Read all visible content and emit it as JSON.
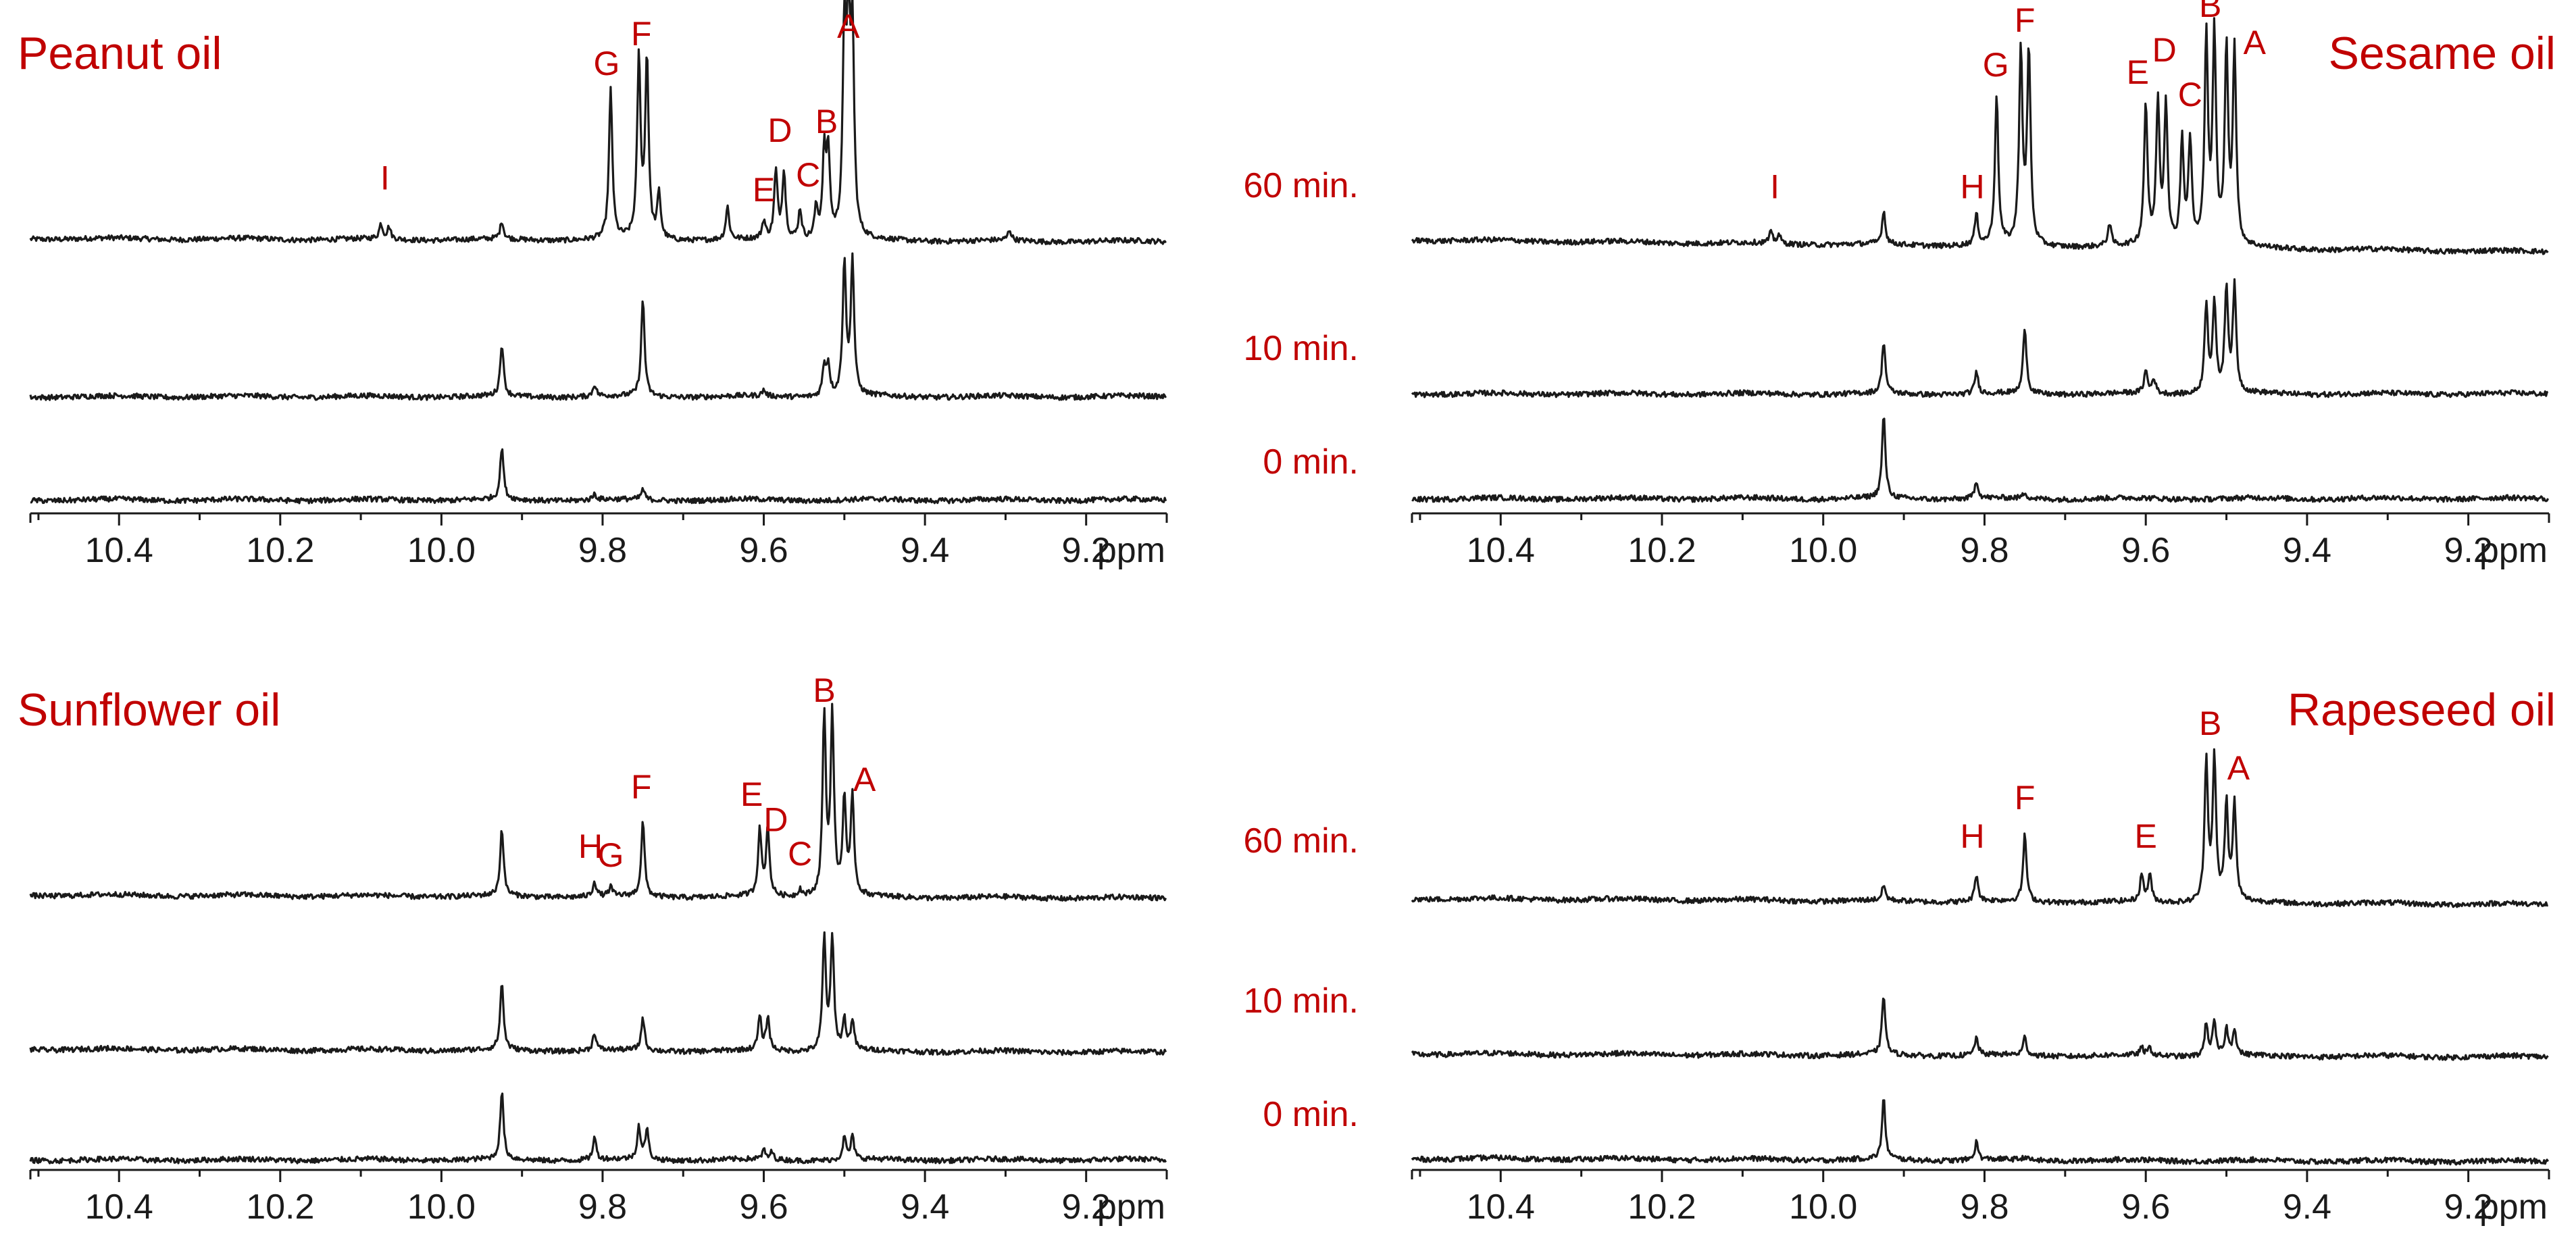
{
  "chart_data": [
    {
      "type": "line",
      "title": "Peanut oil",
      "xlabel": "ppm",
      "xlim": [
        10.51,
        9.1
      ],
      "x_ticks": [
        "10.4",
        "10.2",
        "10.0",
        "9.8",
        "9.6",
        "9.4",
        "9.2"
      ],
      "x_tick_values": [
        10.4,
        10.2,
        10.0,
        9.8,
        9.6,
        9.4,
        9.2
      ],
      "series": [
        {
          "name": "60 min.",
          "baseline_slope": 0.02,
          "peaks": [
            {
              "ppm": 10.075,
              "height": 0.1
            },
            {
              "ppm": 10.065,
              "height": 0.08
            },
            {
              "ppm": 9.925,
              "height": 0.12
            },
            {
              "ppm": 9.79,
              "height": 1.0
            },
            {
              "ppm": 9.755,
              "height": 1.2
            },
            {
              "ppm": 9.745,
              "height": 1.2
            },
            {
              "ppm": 9.73,
              "height": 0.3
            },
            {
              "ppm": 9.645,
              "height": 0.22
            },
            {
              "ppm": 9.6,
              "height": 0.12
            },
            {
              "ppm": 9.585,
              "height": 0.45
            },
            {
              "ppm": 9.575,
              "height": 0.45
            },
            {
              "ppm": 9.555,
              "height": 0.2
            },
            {
              "ppm": 9.535,
              "height": 0.2
            },
            {
              "ppm": 9.525,
              "height": 0.55
            },
            {
              "ppm": 9.52,
              "height": 0.55
            },
            {
              "ppm": 9.5,
              "height": 1.3
            },
            {
              "ppm": 9.495,
              "height": 1.3
            },
            {
              "ppm": 9.49,
              "height": 1.3
            },
            {
              "ppm": 9.295,
              "height": 0.07
            }
          ],
          "labels": [
            {
              "text": "I",
              "ppm": 10.07,
              "height": 0.33
            },
            {
              "text": "G",
              "ppm": 9.795,
              "height": 1.1
            },
            {
              "text": "F",
              "ppm": 9.752,
              "height": 1.3
            },
            {
              "text": "E",
              "ppm": 9.6,
              "height": 0.25
            },
            {
              "text": "D",
              "ppm": 9.58,
              "height": 0.65
            },
            {
              "text": "C",
              "ppm": 9.545,
              "height": 0.35
            },
            {
              "text": "B",
              "ppm": 9.522,
              "height": 0.71
            },
            {
              "text": "A",
              "ppm": 9.495,
              "height": 1.35
            }
          ]
        },
        {
          "name": "10 min.",
          "baseline_slope": 0.0,
          "peaks": [
            {
              "ppm": 9.925,
              "height": 0.35
            },
            {
              "ppm": 9.81,
              "height": 0.08
            },
            {
              "ppm": 9.75,
              "height": 0.65
            },
            {
              "ppm": 9.6,
              "height": 0.04
            },
            {
              "ppm": 9.525,
              "height": 0.2
            },
            {
              "ppm": 9.52,
              "height": 0.2
            },
            {
              "ppm": 9.5,
              "height": 0.9
            },
            {
              "ppm": 9.49,
              "height": 0.9
            }
          ],
          "labels": []
        },
        {
          "name": "0 min.",
          "baseline_slope": 0.0,
          "peaks": [
            {
              "ppm": 9.925,
              "height": 0.35
            },
            {
              "ppm": 9.81,
              "height": 0.04
            },
            {
              "ppm": 9.75,
              "height": 0.07
            }
          ],
          "labels": []
        }
      ]
    },
    {
      "type": "line",
      "title": "Sesame oil",
      "xlabel": "ppm",
      "xlim": [
        10.51,
        9.1
      ],
      "x_ticks": [
        "10.4",
        "10.2",
        "10.0",
        "9.8",
        "9.6",
        "9.4",
        "9.2"
      ],
      "x_tick_values": [
        10.4,
        10.2,
        10.0,
        9.8,
        9.6,
        9.4,
        9.2
      ],
      "series": [
        {
          "name": "60 min.",
          "baseline_slope": 0.08,
          "peaks": [
            {
              "ppm": 10.065,
              "height": 0.07
            },
            {
              "ppm": 10.055,
              "height": 0.06
            },
            {
              "ppm": 9.925,
              "height": 0.22
            },
            {
              "ppm": 9.81,
              "height": 0.2
            },
            {
              "ppm": 9.785,
              "height": 1.0
            },
            {
              "ppm": 9.755,
              "height": 1.3
            },
            {
              "ppm": 9.745,
              "height": 1.3
            },
            {
              "ppm": 9.645,
              "height": 0.15
            },
            {
              "ppm": 9.6,
              "height": 0.95
            },
            {
              "ppm": 9.585,
              "height": 0.95
            },
            {
              "ppm": 9.575,
              "height": 0.95
            },
            {
              "ppm": 9.555,
              "height": 0.7
            },
            {
              "ppm": 9.545,
              "height": 0.7
            },
            {
              "ppm": 9.525,
              "height": 1.4
            },
            {
              "ppm": 9.515,
              "height": 1.4
            },
            {
              "ppm": 9.5,
              "height": 1.3
            },
            {
              "ppm": 9.49,
              "height": 1.3
            }
          ],
          "labels": [
            {
              "text": "I",
              "ppm": 10.06,
              "height": 0.28
            },
            {
              "text": "H",
              "ppm": 9.815,
              "height": 0.28
            },
            {
              "text": "G",
              "ppm": 9.786,
              "height": 1.1
            },
            {
              "text": "F",
              "ppm": 9.75,
              "height": 1.4
            },
            {
              "text": "E",
              "ppm": 9.61,
              "height": 1.05
            },
            {
              "text": "D",
              "ppm": 9.577,
              "height": 1.2
            },
            {
              "text": "C",
              "ppm": 9.545,
              "height": 0.9
            },
            {
              "text": "B",
              "ppm": 9.52,
              "height": 1.5
            },
            {
              "text": "A",
              "ppm": 9.465,
              "height": 1.25
            }
          ]
        },
        {
          "name": "10 min.",
          "baseline_slope": 0.0,
          "peaks": [
            {
              "ppm": 9.925,
              "height": 0.35
            },
            {
              "ppm": 9.81,
              "height": 0.15
            },
            {
              "ppm": 9.75,
              "height": 0.45
            },
            {
              "ppm": 9.6,
              "height": 0.15
            },
            {
              "ppm": 9.59,
              "height": 0.1
            },
            {
              "ppm": 9.525,
              "height": 0.6
            },
            {
              "ppm": 9.515,
              "height": 0.6
            },
            {
              "ppm": 9.5,
              "height": 0.7
            },
            {
              "ppm": 9.49,
              "height": 0.7
            }
          ],
          "labels": []
        },
        {
          "name": "0 min.",
          "baseline_slope": 0.0,
          "peaks": [
            {
              "ppm": 9.925,
              "height": 0.55
            },
            {
              "ppm": 9.81,
              "height": 0.12
            },
            {
              "ppm": 9.75,
              "height": 0.04
            }
          ],
          "labels": []
        }
      ]
    },
    {
      "type": "line",
      "title": "Sunflower oil",
      "xlabel": "ppm",
      "xlim": [
        10.51,
        9.1
      ],
      "x_ticks": [
        "10.4",
        "10.2",
        "10.0",
        "9.8",
        "9.6",
        "9.4",
        "9.2"
      ],
      "x_tick_values": [
        10.4,
        10.2,
        10.0,
        9.8,
        9.6,
        9.4,
        9.2
      ],
      "series": [
        {
          "name": "60 min.",
          "baseline_slope": 0.02,
          "peaks": [
            {
              "ppm": 9.925,
              "height": 0.45
            },
            {
              "ppm": 9.81,
              "height": 0.1
            },
            {
              "ppm": 9.79,
              "height": 0.06
            },
            {
              "ppm": 9.75,
              "height": 0.5
            },
            {
              "ppm": 9.605,
              "height": 0.45
            },
            {
              "ppm": 9.595,
              "height": 0.45
            },
            {
              "ppm": 9.555,
              "height": 0.05
            },
            {
              "ppm": 9.525,
              "height": 1.2
            },
            {
              "ppm": 9.515,
              "height": 1.2
            },
            {
              "ppm": 9.5,
              "height": 0.65
            },
            {
              "ppm": 9.49,
              "height": 0.65
            }
          ],
          "labels": [
            {
              "text": "H",
              "ppm": 9.815,
              "height": 0.25
            },
            {
              "text": "G",
              "ppm": 9.79,
              "height": 0.19
            },
            {
              "text": "F",
              "ppm": 9.752,
              "height": 0.65
            },
            {
              "text": "E",
              "ppm": 9.615,
              "height": 0.6
            },
            {
              "text": "D",
              "ppm": 9.585,
              "height": 0.43
            },
            {
              "text": "C",
              "ppm": 9.555,
              "height": 0.2
            },
            {
              "text": "B",
              "ppm": 9.525,
              "height": 1.3
            },
            {
              "text": "A",
              "ppm": 9.475,
              "height": 0.7
            }
          ]
        },
        {
          "name": "10 min.",
          "baseline_slope": 0.02,
          "peaks": [
            {
              "ppm": 9.925,
              "height": 0.45
            },
            {
              "ppm": 9.81,
              "height": 0.12
            },
            {
              "ppm": 9.75,
              "height": 0.22
            },
            {
              "ppm": 9.605,
              "height": 0.22
            },
            {
              "ppm": 9.595,
              "height": 0.22
            },
            {
              "ppm": 9.525,
              "height": 0.75
            },
            {
              "ppm": 9.515,
              "height": 0.75
            },
            {
              "ppm": 9.5,
              "height": 0.2
            },
            {
              "ppm": 9.49,
              "height": 0.2
            }
          ],
          "labels": []
        },
        {
          "name": "0 min.",
          "baseline_slope": 0.0,
          "peaks": [
            {
              "ppm": 9.925,
              "height": 0.45
            },
            {
              "ppm": 9.81,
              "height": 0.15
            },
            {
              "ppm": 9.755,
              "height": 0.22
            },
            {
              "ppm": 9.745,
              "height": 0.2
            },
            {
              "ppm": 9.6,
              "height": 0.06
            },
            {
              "ppm": 9.59,
              "height": 0.05
            },
            {
              "ppm": 9.5,
              "height": 0.15
            },
            {
              "ppm": 9.49,
              "height": 0.15
            }
          ],
          "labels": []
        }
      ]
    },
    {
      "type": "line",
      "title": "Rapeseed oil",
      "xlabel": "ppm",
      "xlim": [
        10.51,
        9.1
      ],
      "x_ticks": [
        "10.4",
        "10.2",
        "10.0",
        "9.8",
        "9.6",
        "9.4",
        "9.2"
      ],
      "x_tick_values": [
        10.4,
        10.2,
        10.0,
        9.8,
        9.6,
        9.4,
        9.2
      ],
      "series": [
        {
          "name": "60 min.",
          "baseline_slope": 0.04,
          "peaks": [
            {
              "ppm": 9.925,
              "height": 0.1
            },
            {
              "ppm": 9.81,
              "height": 0.18
            },
            {
              "ppm": 9.75,
              "height": 0.45
            },
            {
              "ppm": 9.605,
              "height": 0.18
            },
            {
              "ppm": 9.595,
              "height": 0.18
            },
            {
              "ppm": 9.525,
              "height": 0.95
            },
            {
              "ppm": 9.515,
              "height": 0.95
            },
            {
              "ppm": 9.5,
              "height": 0.65
            },
            {
              "ppm": 9.49,
              "height": 0.65
            }
          ],
          "labels": [
            {
              "text": "H",
              "ppm": 9.815,
              "height": 0.34
            },
            {
              "text": "F",
              "ppm": 9.75,
              "height": 0.6
            },
            {
              "text": "E",
              "ppm": 9.6,
              "height": 0.34
            },
            {
              "text": "B",
              "ppm": 9.52,
              "height": 1.1
            },
            {
              "text": "A",
              "ppm": 9.485,
              "height": 0.8
            }
          ]
        },
        {
          "name": "10 min.",
          "baseline_slope": 0.02,
          "peaks": [
            {
              "ppm": 9.925,
              "height": 0.4
            },
            {
              "ppm": 9.81,
              "height": 0.12
            },
            {
              "ppm": 9.75,
              "height": 0.12
            },
            {
              "ppm": 9.605,
              "height": 0.05
            },
            {
              "ppm": 9.595,
              "height": 0.05
            },
            {
              "ppm": 9.525,
              "height": 0.22
            },
            {
              "ppm": 9.515,
              "height": 0.22
            },
            {
              "ppm": 9.5,
              "height": 0.18
            },
            {
              "ppm": 9.49,
              "height": 0.18
            }
          ],
          "labels": []
        },
        {
          "name": "0 min.",
          "baseline_slope": 0.02,
          "peaks": [
            {
              "ppm": 9.925,
              "height": 0.4
            },
            {
              "ppm": 9.81,
              "height": 0.12
            },
            {
              "ppm": 9.75,
              "height": 0.02
            }
          ],
          "labels": []
        }
      ]
    }
  ],
  "time_labels": [
    "60 min.",
    "10 min.",
    "0 min."
  ],
  "colors": {
    "trace": "#1a1a1a",
    "annotation": "#c00000",
    "axis": "#1a1a1a"
  }
}
